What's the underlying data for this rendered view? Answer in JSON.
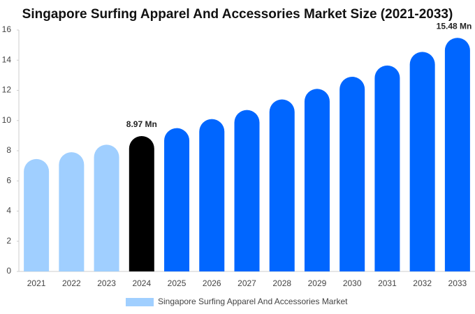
{
  "chart_data": {
    "type": "bar",
    "title": "Singapore Surfing Apparel And Accessories Market Size (2021-2033)",
    "categories": [
      "2021",
      "2022",
      "2023",
      "2024",
      "2025",
      "2026",
      "2027",
      "2028",
      "2029",
      "2030",
      "2031",
      "2032",
      "2033"
    ],
    "series": [
      {
        "name": "Singapore Surfing Apparel And Accessories Market",
        "color": "#a0cfff",
        "values": [
          7.45,
          7.9,
          8.4,
          8.97,
          9.5,
          10.1,
          10.7,
          11.4,
          12.1,
          12.9,
          13.65,
          14.55,
          15.48
        ],
        "value_labels": [
          null,
          null,
          null,
          "8.97 Mn",
          null,
          null,
          null,
          null,
          null,
          null,
          null,
          null,
          "15.48 Mn"
        ],
        "bar_colors": [
          "#a0cfff",
          "#a0cfff",
          "#a0cfff",
          "#000000",
          "#0066ff",
          "#0066ff",
          "#0066ff",
          "#0066ff",
          "#0066ff",
          "#0066ff",
          "#0066ff",
          "#0066ff",
          "#0066ff"
        ]
      }
    ],
    "ylim": [
      0,
      16
    ],
    "yticks": [
      0,
      2,
      4,
      6,
      8,
      10,
      12,
      14,
      16
    ],
    "grid": false,
    "legend": "bottom"
  }
}
